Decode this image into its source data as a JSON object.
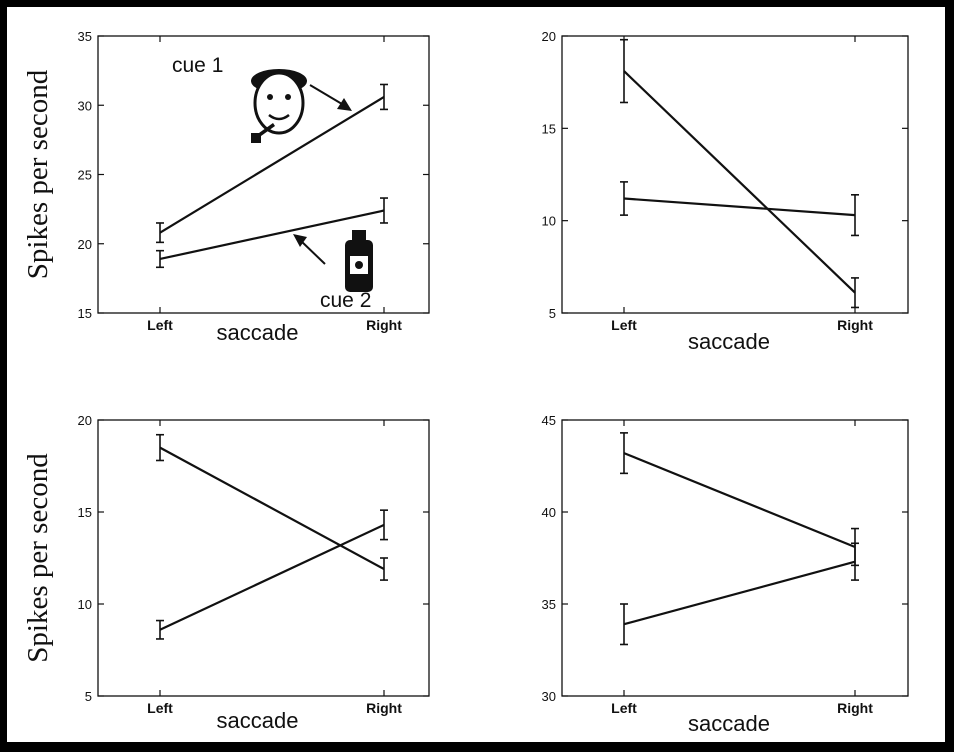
{
  "chart_data": [
    {
      "type": "line",
      "categories": [
        "Left",
        "Right"
      ],
      "xlabel": "saccade",
      "ylabel": "Spikes per second",
      "ylim": [
        15,
        35
      ],
      "yticks": [
        15,
        20,
        25,
        30,
        35
      ],
      "series": [
        {
          "name": "cue 1",
          "values": [
            20.8,
            30.6
          ],
          "err": [
            0.7,
            0.9
          ]
        },
        {
          "name": "cue 2",
          "values": [
            18.9,
            22.4
          ],
          "err": [
            0.6,
            0.9
          ]
        }
      ],
      "annotations": [
        "cue 1",
        "cue 2"
      ],
      "icons": [
        "man-with-pipe-icon",
        "bottle-icon"
      ]
    },
    {
      "type": "line",
      "categories": [
        "Left",
        "Right"
      ],
      "xlabel": "saccade",
      "ylabel": "",
      "ylim": [
        5,
        20
      ],
      "yticks": [
        5,
        10,
        15,
        20
      ],
      "series": [
        {
          "values": [
            18.1,
            6.1
          ],
          "err": [
            1.7,
            0.8
          ]
        },
        {
          "values": [
            11.2,
            10.3
          ],
          "err": [
            0.9,
            1.1
          ]
        }
      ]
    },
    {
      "type": "line",
      "categories": [
        "Left",
        "Right"
      ],
      "xlabel": "saccade",
      "ylabel": "Spikes per second",
      "ylim": [
        5,
        20
      ],
      "yticks": [
        5,
        10,
        15,
        20
      ],
      "series": [
        {
          "values": [
            18.5,
            11.9
          ],
          "err": [
            0.7,
            0.6
          ]
        },
        {
          "values": [
            8.6,
            14.3
          ],
          "err": [
            0.5,
            0.8
          ]
        }
      ]
    },
    {
      "type": "line",
      "categories": [
        "Left",
        "Right"
      ],
      "xlabel": "saccade",
      "ylabel": "",
      "ylim": [
        30,
        45
      ],
      "yticks": [
        30,
        35,
        40,
        45
      ],
      "series": [
        {
          "values": [
            43.2,
            38.1
          ],
          "err": [
            1.1,
            1.0
          ]
        },
        {
          "values": [
            33.9,
            37.3
          ],
          "err": [
            1.1,
            1.0
          ]
        }
      ]
    }
  ]
}
